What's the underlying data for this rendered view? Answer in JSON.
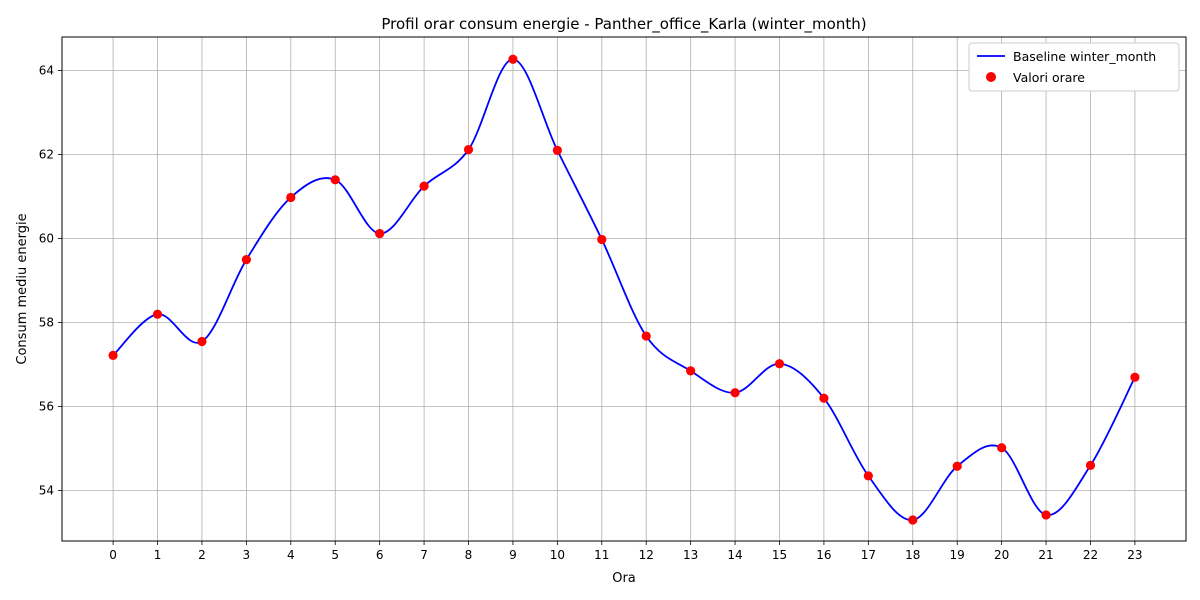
{
  "chart_data": {
    "type": "line",
    "title": "Profil orar consum energie - Panther_office_Karla (winter_month)",
    "xlabel": "Ora",
    "ylabel": "Consum mediu energie",
    "x": [
      0,
      1,
      2,
      3,
      4,
      5,
      6,
      7,
      8,
      9,
      10,
      11,
      12,
      13,
      14,
      15,
      16,
      17,
      18,
      19,
      20,
      21,
      22,
      23
    ],
    "x_ticks": [
      "0",
      "1",
      "2",
      "3",
      "4",
      "5",
      "6",
      "7",
      "8",
      "9",
      "10",
      "11",
      "12",
      "13",
      "14",
      "15",
      "16",
      "17",
      "18",
      "19",
      "20",
      "21",
      "22",
      "23"
    ],
    "y_ticks": [
      "54",
      "56",
      "58",
      "60",
      "62",
      "64"
    ],
    "xlim": [
      -1.15,
      24.15
    ],
    "ylim": [
      52.8,
      64.8
    ],
    "grid": true,
    "legend_position": "top-right",
    "series": [
      {
        "name": "Baseline winter_month",
        "kind": "smooth-line",
        "color": "#0000ff",
        "values": [
          57.22,
          58.2,
          57.55,
          59.5,
          60.98,
          61.4,
          60.12,
          61.25,
          62.12,
          64.27,
          62.1,
          59.98,
          57.68,
          56.85,
          56.33,
          57.02,
          56.2,
          54.35,
          53.3,
          54.58,
          55.02,
          53.42,
          54.6,
          56.7
        ]
      },
      {
        "name": "Valori orare",
        "kind": "scatter",
        "color": "#ff0000",
        "values": [
          57.22,
          58.2,
          57.55,
          59.5,
          60.98,
          61.4,
          60.12,
          61.25,
          62.12,
          64.27,
          62.1,
          59.98,
          57.68,
          56.85,
          56.33,
          57.02,
          56.2,
          54.35,
          53.3,
          54.58,
          55.02,
          53.42,
          54.6,
          56.7
        ]
      }
    ]
  }
}
